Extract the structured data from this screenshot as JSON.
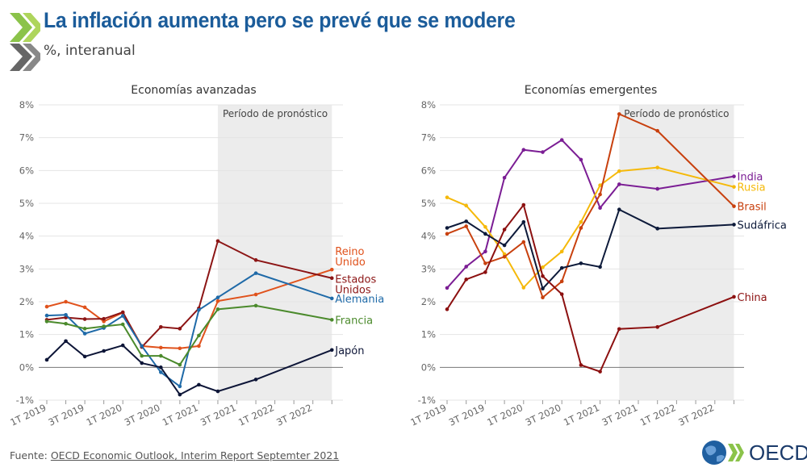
{
  "header": {
    "title": "La inflación aumenta pero se prevé que se modere",
    "subtitle": "%, interanual"
  },
  "source": {
    "label": "Fuente: ",
    "link": "OECD Economic Outlook, Interim Report Septemter 2021"
  },
  "logo": {
    "text": "OECD"
  },
  "chart_data": [
    {
      "type": "line",
      "title": "Economías avanzadas",
      "ylim": [
        -1,
        8
      ],
      "yticks": [
        "-1%",
        "0%",
        "1%",
        "2%",
        "3%",
        "4%",
        "5%",
        "6%",
        "7%",
        "8%"
      ],
      "xticks": [
        "1T 2019",
        "3T 2019",
        "1T 2020",
        "3T 2020",
        "1T 2021",
        "3T 2021",
        "1T 2022",
        "3T 2022"
      ],
      "x": [
        "1T 2019",
        "2T 2019",
        "3T 2019",
        "4T 2019",
        "1T 2020",
        "2T 2020",
        "3T 2020",
        "4T 2020",
        "1T 2021",
        "2T 2021",
        "4T 2021",
        "4T 2022"
      ],
      "forecast_label": "Período de pronóstico",
      "forecast_start": "2T 2021",
      "series": [
        {
          "name": "Reino Unido",
          "color": "#e0521c",
          "values": [
            1.85,
            2.0,
            1.83,
            1.4,
            1.67,
            0.65,
            0.6,
            0.58,
            0.65,
            2.02,
            2.22,
            2.98
          ]
        },
        {
          "name": "Estados Unidos",
          "color": "#8c1515",
          "values": [
            1.45,
            1.52,
            1.47,
            1.48,
            1.68,
            0.62,
            1.23,
            1.18,
            1.8,
            3.85,
            3.27,
            2.72
          ]
        },
        {
          "name": "Alemania",
          "color": "#1f6aa8",
          "values": [
            1.58,
            1.6,
            1.03,
            1.2,
            1.57,
            0.65,
            -0.15,
            -0.58,
            1.75,
            2.13,
            2.87,
            2.1
          ]
        },
        {
          "name": "Francia",
          "color": "#4b8a2c",
          "values": [
            1.4,
            1.33,
            1.18,
            1.25,
            1.31,
            0.35,
            0.35,
            0.08,
            0.97,
            1.77,
            1.88,
            1.45
          ]
        },
        {
          "name": "Japón",
          "color": "#0d1537",
          "values": [
            0.23,
            0.8,
            0.33,
            0.5,
            0.67,
            0.13,
            0.0,
            -0.83,
            -0.53,
            -0.73,
            -0.37,
            0.53
          ]
        }
      ]
    },
    {
      "type": "line",
      "title": "Economías emergentes",
      "ylim": [
        -1,
        8
      ],
      "yticks": [
        "-1%",
        "0%",
        "1%",
        "2%",
        "3%",
        "4%",
        "5%",
        "6%",
        "7%",
        "8%"
      ],
      "xticks": [
        "1T 2019",
        "3T 2019",
        "1T 2020",
        "3T 2020",
        "1T 2021",
        "3T 2021",
        "1T 2022",
        "3T 2022"
      ],
      "x": [
        "1T 2019",
        "2T 2019",
        "3T 2019",
        "4T 2019",
        "1T 2020",
        "2T 2020",
        "3T 2020",
        "4T 2020",
        "1T 2021",
        "2T 2021",
        "4T 2021",
        "4T 2022"
      ],
      "forecast_label": "Período de pronóstico",
      "forecast_start": "2T 2021",
      "series": [
        {
          "name": "India",
          "color": "#7b1d94",
          "values": [
            2.42,
            3.07,
            3.53,
            5.78,
            6.63,
            6.56,
            6.93,
            6.33,
            4.86,
            5.58,
            5.44,
            5.82
          ]
        },
        {
          "name": "Rusia",
          "color": "#f5b90a",
          "values": [
            5.18,
            4.93,
            4.28,
            3.45,
            2.43,
            3.05,
            3.53,
            4.43,
            5.55,
            5.98,
            6.09,
            5.5
          ]
        },
        {
          "name": "Brasil",
          "color": "#c8400e",
          "values": [
            4.07,
            4.3,
            3.17,
            3.37,
            3.82,
            2.13,
            2.62,
            4.25,
            5.27,
            7.72,
            7.21,
            4.91
          ]
        },
        {
          "name": "Sudáfrica",
          "color": "#0d1a3a",
          "values": [
            4.25,
            4.45,
            4.07,
            3.72,
            4.43,
            2.4,
            3.03,
            3.17,
            3.06,
            4.81,
            4.23,
            4.35
          ]
        },
        {
          "name": "China",
          "color": "#8c1010",
          "values": [
            1.77,
            2.68,
            2.9,
            4.2,
            4.95,
            2.78,
            2.23,
            0.07,
            -0.13,
            1.17,
            1.23,
            2.15
          ]
        }
      ]
    }
  ]
}
